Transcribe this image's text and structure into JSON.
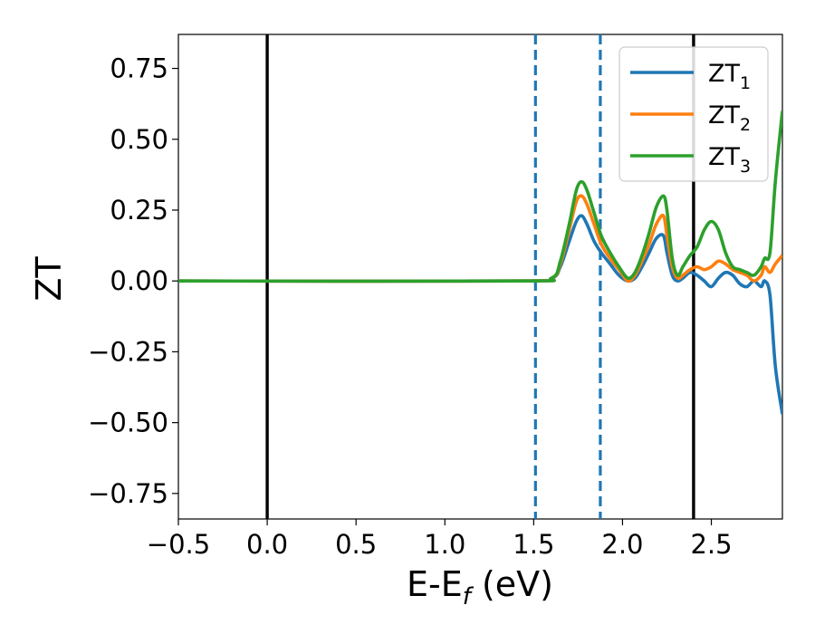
{
  "chart_data": {
    "type": "line",
    "xlabel": {
      "main": "E-E",
      "sub": "f",
      "suffix": " (eV)"
    },
    "ylabel": "ZT",
    "xlim": [
      -0.5,
      2.9
    ],
    "ylim": [
      -0.84,
      0.87
    ],
    "xticks": [
      -0.5,
      0.0,
      0.5,
      1.0,
      1.5,
      2.0,
      2.5
    ],
    "xtick_labels": [
      "−0.5",
      "0.0",
      "0.5",
      "1.0",
      "1.5",
      "2.0",
      "2.5"
    ],
    "yticks": [
      -0.75,
      -0.5,
      -0.25,
      0.0,
      0.25,
      0.5,
      0.75
    ],
    "ytick_labels": [
      "−0.75",
      "−0.50",
      "−0.25",
      "0.00",
      "0.25",
      "0.50",
      "0.75"
    ],
    "grid": false,
    "legend_position": "top-right",
    "vlines": [
      {
        "x": 0.0,
        "style": "solid",
        "color": "#000000"
      },
      {
        "x": 2.4,
        "style": "solid",
        "color": "#000000"
      },
      {
        "x": 1.51,
        "style": "dashed",
        "color": "#1f77b4"
      },
      {
        "x": 1.875,
        "style": "dashed",
        "color": "#1f77b4"
      }
    ],
    "series": [
      {
        "label_main": "ZT",
        "label_sub": "1",
        "color": "#1f77b4",
        "x": [
          -0.5,
          1.4,
          1.6,
          1.65,
          1.7,
          1.74,
          1.77,
          1.8,
          1.84,
          1.88,
          1.93,
          1.98,
          2.03,
          2.07,
          2.11,
          2.15,
          2.19,
          2.23,
          2.25,
          2.28,
          2.31,
          2.34,
          2.38,
          2.42,
          2.46,
          2.5,
          2.54,
          2.58,
          2.62,
          2.66,
          2.7,
          2.74,
          2.78,
          2.8,
          2.83,
          2.86,
          2.9
        ],
        "y": [
          0.0,
          0.0,
          0.01,
          0.05,
          0.14,
          0.21,
          0.23,
          0.2,
          0.14,
          0.1,
          0.06,
          0.02,
          0.0,
          0.01,
          0.05,
          0.1,
          0.15,
          0.16,
          0.1,
          0.02,
          0.0,
          0.01,
          0.03,
          0.02,
          0.0,
          -0.02,
          0.01,
          0.03,
          0.02,
          -0.01,
          -0.02,
          0.0,
          -0.02,
          0.0,
          -0.05,
          -0.3,
          -0.47
        ]
      },
      {
        "label_main": "ZT",
        "label_sub": "2",
        "color": "#ff7f0e",
        "x": [
          -0.5,
          1.4,
          1.6,
          1.65,
          1.7,
          1.74,
          1.77,
          1.8,
          1.84,
          1.88,
          1.93,
          1.98,
          2.03,
          2.07,
          2.11,
          2.15,
          2.19,
          2.23,
          2.25,
          2.28,
          2.31,
          2.34,
          2.38,
          2.42,
          2.46,
          2.5,
          2.54,
          2.58,
          2.62,
          2.66,
          2.7,
          2.74,
          2.78,
          2.8,
          2.83,
          2.86,
          2.9
        ],
        "y": [
          0.0,
          0.0,
          0.01,
          0.06,
          0.18,
          0.28,
          0.3,
          0.27,
          0.2,
          0.13,
          0.08,
          0.04,
          0.0,
          0.02,
          0.07,
          0.13,
          0.2,
          0.23,
          0.16,
          0.05,
          0.01,
          0.02,
          0.04,
          0.05,
          0.04,
          0.05,
          0.07,
          0.06,
          0.04,
          0.03,
          0.02,
          0.0,
          0.02,
          0.05,
          0.03,
          0.06,
          0.09
        ]
      },
      {
        "label_main": "ZT",
        "label_sub": "3",
        "color": "#2ca02c",
        "x": [
          -0.5,
          1.4,
          1.6,
          1.65,
          1.7,
          1.74,
          1.77,
          1.8,
          1.84,
          1.88,
          1.93,
          1.98,
          2.03,
          2.07,
          2.11,
          2.15,
          2.19,
          2.23,
          2.25,
          2.28,
          2.31,
          2.34,
          2.38,
          2.42,
          2.46,
          2.5,
          2.54,
          2.58,
          2.62,
          2.66,
          2.7,
          2.74,
          2.78,
          2.8,
          2.83,
          2.86,
          2.9
        ],
        "y": [
          0.0,
          0.0,
          0.01,
          0.07,
          0.2,
          0.32,
          0.35,
          0.32,
          0.24,
          0.16,
          0.1,
          0.05,
          0.01,
          0.03,
          0.09,
          0.17,
          0.26,
          0.3,
          0.25,
          0.08,
          0.02,
          0.05,
          0.09,
          0.12,
          0.18,
          0.21,
          0.18,
          0.1,
          0.05,
          0.04,
          0.03,
          0.02,
          0.05,
          0.08,
          0.1,
          0.35,
          0.6
        ]
      }
    ]
  }
}
